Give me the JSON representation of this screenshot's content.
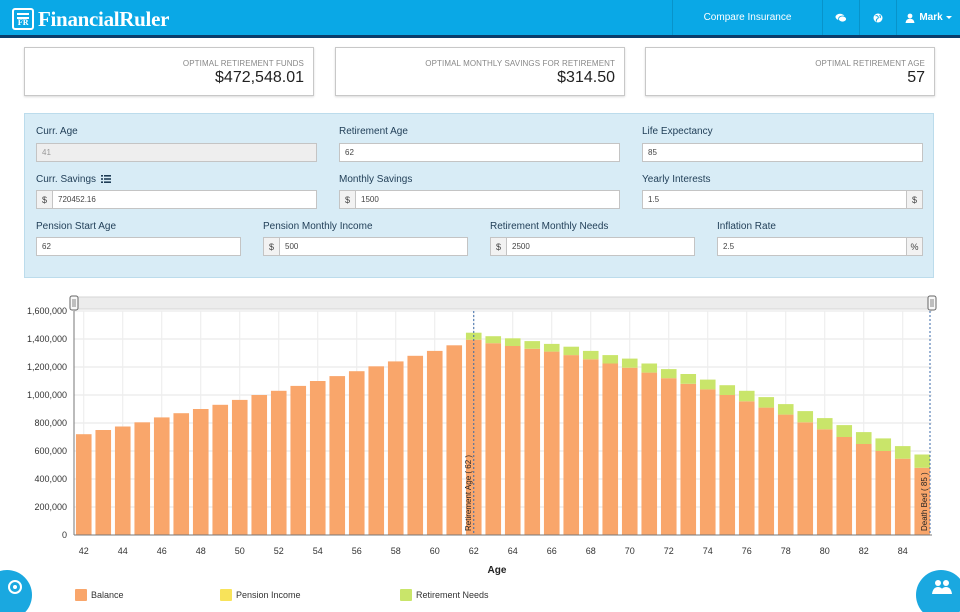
{
  "header": {
    "brand": "FinancialRuler",
    "brand_badge": "FR",
    "compare_label": "Compare Insurance",
    "user_name": "Mark",
    "chat_icon": "chat-icon",
    "globe_icon": "globe-icon",
    "user_icon": "user-icon"
  },
  "summary": {
    "funds_label": "Optimal Retirement Funds",
    "funds_value": "$472,548.01",
    "savings_label": "Optimal Monthly Savings for Retirement",
    "savings_value": "$314.50",
    "age_label": "Optimal Retirement Age",
    "age_value": "57"
  },
  "form": {
    "curr_age_label": "Curr. Age",
    "curr_age_value": "41",
    "retirement_age_label": "Retirement Age",
    "retirement_age_value": "62",
    "life_expectancy_label": "Life Expectancy",
    "life_expectancy_value": "85",
    "curr_savings_label": "Curr. Savings",
    "curr_savings_value": "720452.16",
    "monthly_savings_label": "Monthly Savings",
    "monthly_savings_value": "1500",
    "yearly_interests_label": "Yearly Interests",
    "yearly_interests_value": "1.5",
    "pension_start_label": "Pension Start Age",
    "pension_start_value": "62",
    "pension_income_label": "Pension Monthly Income",
    "pension_income_value": "500",
    "retirement_needs_label": "Retirement Monthly Needs",
    "retirement_needs_value": "2500",
    "inflation_label": "Inflation Rate",
    "inflation_value": "2.5",
    "currency_symbol": "$",
    "percent_symbol": "%"
  },
  "colors": {
    "balance": "#f9a66b",
    "pension": "#f8e35a",
    "needs": "#c9e56a",
    "nav": "#0aa8e6"
  },
  "legend": {
    "balance": "Balance",
    "pension": "Pension Income",
    "needs": "Retirement Needs"
  },
  "chart_data": {
    "type": "bar",
    "xlabel": "Age",
    "ylabel": "",
    "ylim": [
      0,
      1600000
    ],
    "y_ticks": [
      "0",
      "200,000",
      "400,000",
      "600,000",
      "800,000",
      "1,000,000",
      "1,200,000",
      "1,400,000",
      "1,600,000"
    ],
    "x_ticks": [
      "42",
      "44",
      "46",
      "48",
      "50",
      "52",
      "54",
      "56",
      "58",
      "60",
      "62",
      "64",
      "66",
      "68",
      "70",
      "72",
      "74",
      "76",
      "78",
      "80",
      "82",
      "84"
    ],
    "categories": [
      42,
      43,
      44,
      45,
      46,
      47,
      48,
      49,
      50,
      51,
      52,
      53,
      54,
      55,
      56,
      57,
      58,
      59,
      60,
      61,
      62,
      63,
      64,
      65,
      66,
      67,
      68,
      69,
      70,
      71,
      72,
      73,
      74,
      75,
      76,
      77,
      78,
      79,
      80,
      81,
      82,
      83,
      84,
      85
    ],
    "series": [
      {
        "name": "Balance",
        "values": [
          720000,
          750000,
          775000,
          805000,
          840000,
          870000,
          900000,
          930000,
          965000,
          1000000,
          1030000,
          1065000,
          1100000,
          1135000,
          1170000,
          1205000,
          1240000,
          1280000,
          1315000,
          1355000,
          1395000,
          1370000,
          1350000,
          1330000,
          1310000,
          1285000,
          1255000,
          1225000,
          1195000,
          1160000,
          1120000,
          1080000,
          1040000,
          1000000,
          955000,
          910000,
          860000,
          805000,
          755000,
          700000,
          650000,
          600000,
          545000,
          480000
        ]
      },
      {
        "name": "Pension Income",
        "values": [
          0,
          0,
          0,
          0,
          0,
          0,
          0,
          0,
          0,
          0,
          0,
          0,
          0,
          0,
          0,
          0,
          0,
          0,
          0,
          0,
          0,
          0,
          0,
          0,
          0,
          0,
          0,
          0,
          0,
          0,
          0,
          0,
          0,
          0,
          0,
          0,
          0,
          0,
          0,
          0,
          0,
          0,
          0,
          0
        ]
      },
      {
        "name": "Retirement Needs",
        "values": [
          0,
          0,
          0,
          0,
          0,
          0,
          0,
          0,
          0,
          0,
          0,
          0,
          0,
          0,
          0,
          0,
          0,
          0,
          0,
          0,
          50000,
          50000,
          55000,
          55000,
          55000,
          60000,
          60000,
          60000,
          65000,
          65000,
          65000,
          70000,
          70000,
          70000,
          75000,
          75000,
          75000,
          80000,
          80000,
          85000,
          85000,
          90000,
          90000,
          95000
        ]
      }
    ],
    "markers": [
      {
        "label": "Retirement Age ( 62 )",
        "x": 62
      },
      {
        "label": "Death Bed ( 85 )",
        "x": 85
      }
    ]
  }
}
